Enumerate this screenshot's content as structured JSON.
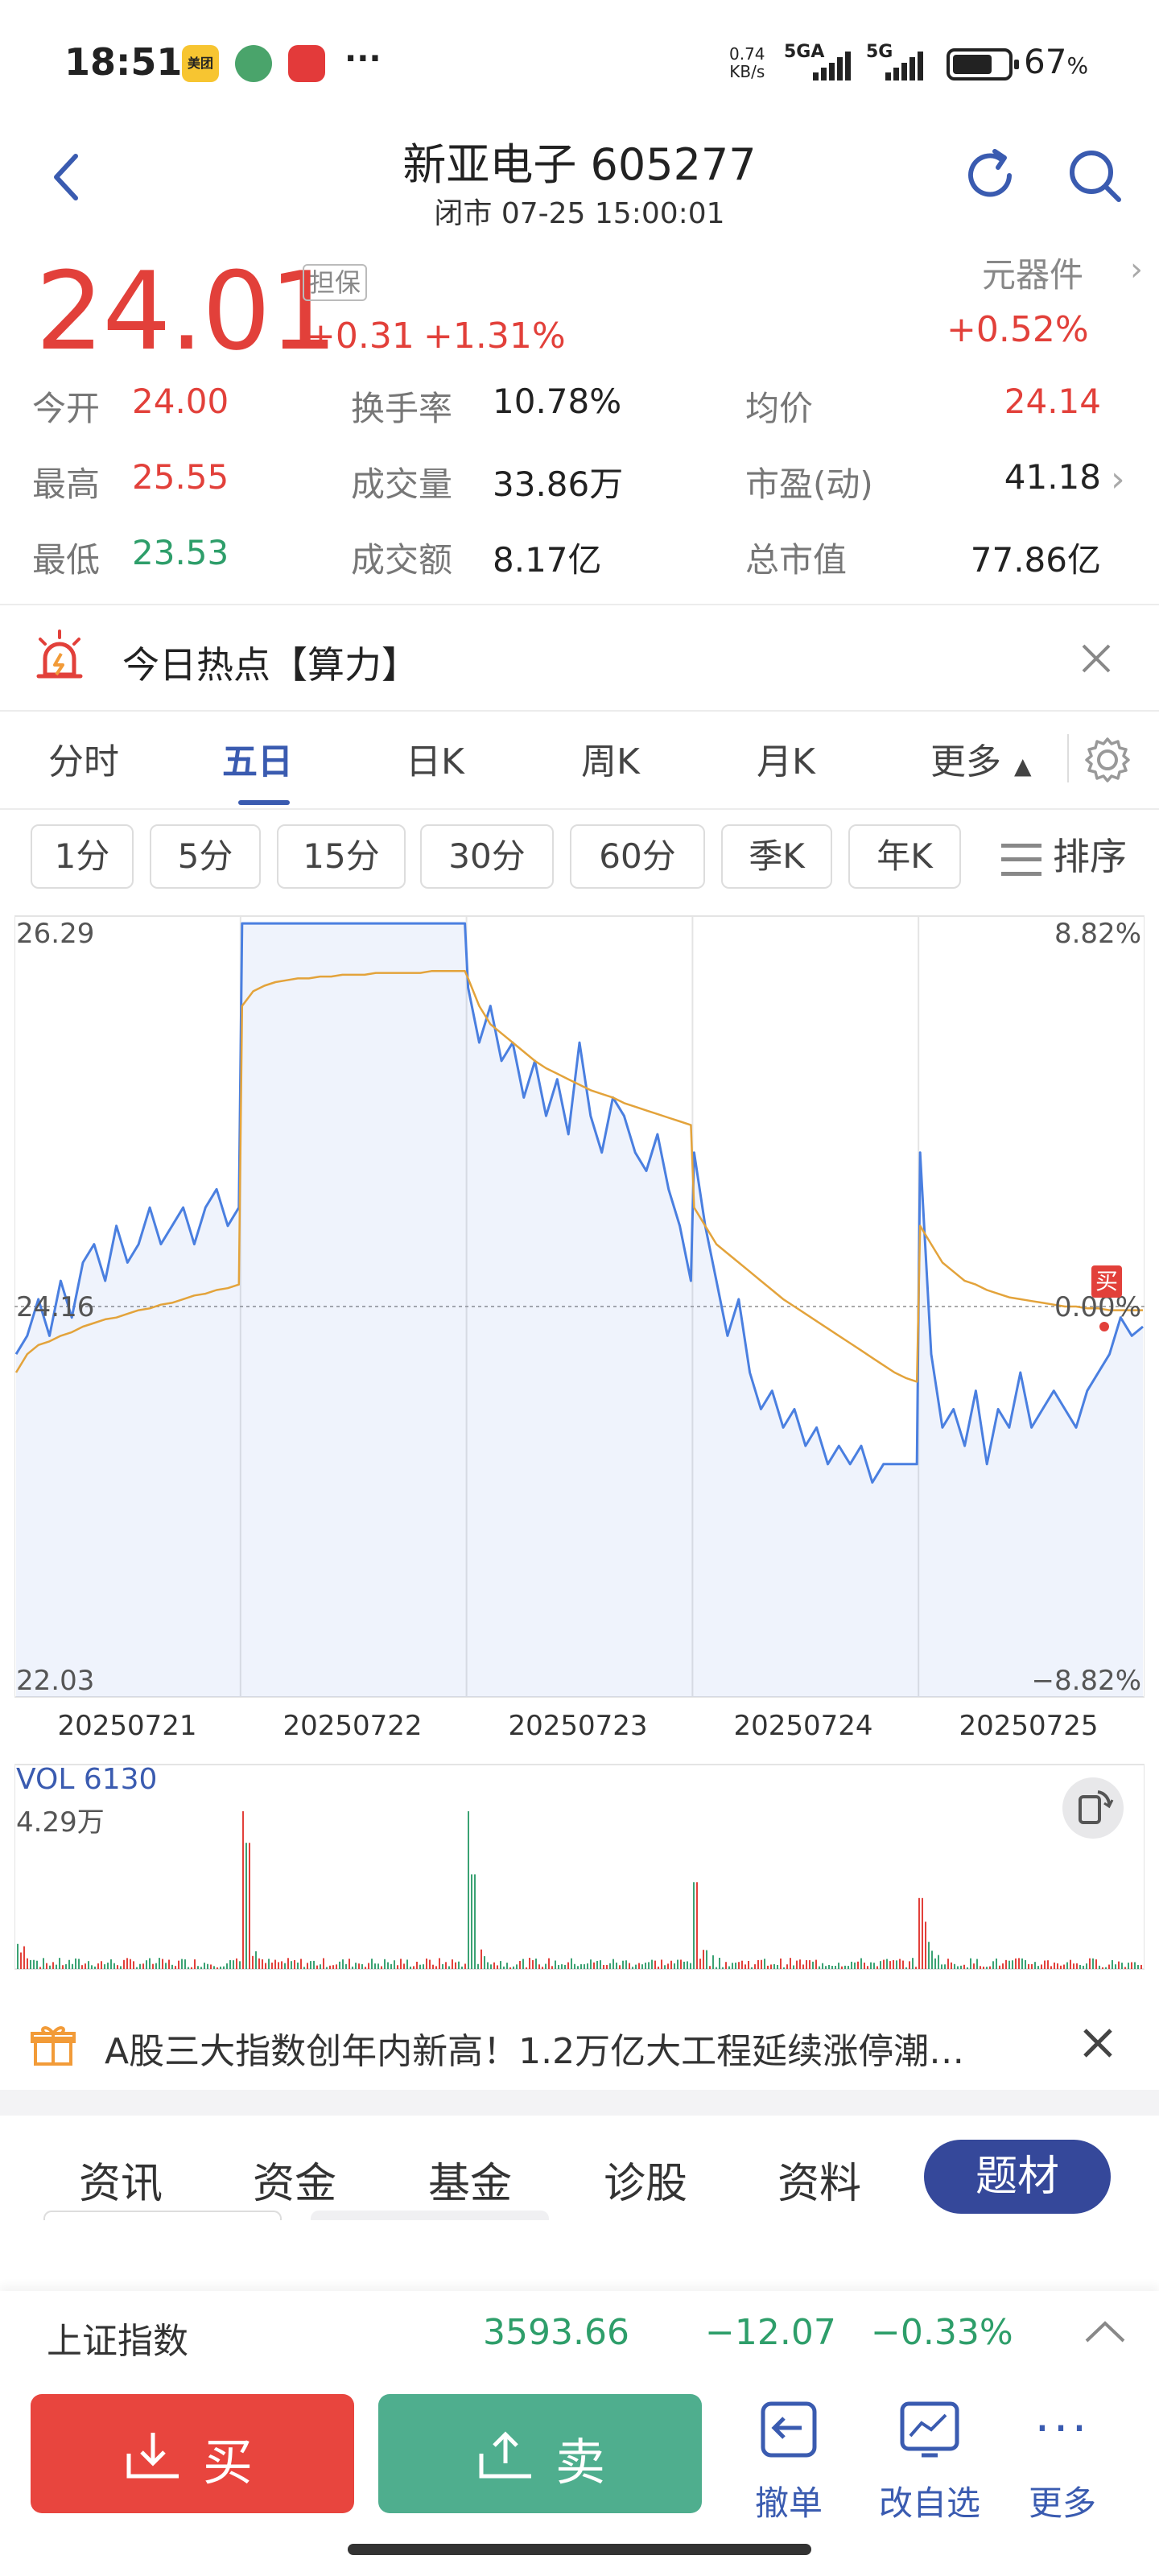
{
  "status_bar": {
    "time": "18:51",
    "app_icon_meituan": "美团",
    "net_speed_value": "0.74",
    "net_speed_unit": "KB/s",
    "net1": "5GA",
    "net2": "5G",
    "battery": "67",
    "battery_unit": "%"
  },
  "header": {
    "title": "新亚电子 605277",
    "subtitle": "闭市 07-25 15:00:01"
  },
  "quote": {
    "price": "24.01",
    "badge": "担保",
    "change": "+0.31",
    "change_pct": "+1.31%",
    "sector": "元器件",
    "sector_change": "+0.52%",
    "stats": [
      {
        "label": "今开",
        "value": "24.00",
        "color": "red"
      },
      {
        "label": "换手率",
        "value": "10.78%",
        "color": "dark"
      },
      {
        "label": "均价",
        "value": "24.14",
        "color": "red"
      },
      {
        "label": "最高",
        "value": "25.55",
        "color": "red"
      },
      {
        "label": "成交量",
        "value": "33.86万",
        "color": "dark"
      },
      {
        "label": "市盈(动)",
        "value": "41.18",
        "color": "dark"
      },
      {
        "label": "最低",
        "value": "23.53",
        "color": "green"
      },
      {
        "label": "成交额",
        "value": "8.17亿",
        "color": "dark"
      },
      {
        "label": "总市值",
        "value": "77.86亿",
        "color": "dark"
      }
    ]
  },
  "hot_topic": {
    "text": "今日热点【算力】"
  },
  "chart_tabs": [
    "分时",
    "五日",
    "日K",
    "周K",
    "月K",
    "更多"
  ],
  "active_tab": 1,
  "period_tabs": [
    "1分",
    "5分",
    "15分",
    "30分",
    "60分",
    "季K",
    "年K"
  ],
  "sort_label": "排序",
  "chart_data": {
    "type": "line",
    "y_top": "26.29",
    "y_mid": "24.16",
    "y_bottom": "22.03",
    "pct_top": "8.82%",
    "pct_mid": "0.00%",
    "pct_bottom": "−8.82%",
    "ylim": [
      22.03,
      26.29
    ],
    "days": [
      "20250721",
      "20250722",
      "20250723",
      "20250724",
      "20250725"
    ],
    "buy_marker": "买",
    "series": [
      {
        "name": "",
        "color": "#4a7fe0",
        "values": [
          [
            23.9,
            24.0,
            24.2,
            24.0,
            24.3,
            24.1,
            24.4,
            24.5,
            24.3,
            24.6,
            24.4,
            24.5,
            24.7,
            24.5,
            24.6,
            24.7,
            24.5,
            24.7,
            24.8,
            24.6,
            24.7
          ],
          [
            26.25,
            26.25,
            26.25,
            26.25,
            26.25,
            26.25,
            26.25,
            26.25,
            26.25,
            26.25,
            26.25,
            26.25,
            26.25,
            26.25,
            26.25,
            26.25,
            26.25,
            26.25,
            26.25,
            26.25,
            26.25
          ],
          [
            25.9,
            25.6,
            25.8,
            25.5,
            25.6,
            25.3,
            25.5,
            25.2,
            25.4,
            25.1,
            25.6,
            25.2,
            25.0,
            25.3,
            25.2,
            25.0,
            24.9,
            25.1,
            24.8,
            24.6,
            24.3
          ],
          [
            25.0,
            24.6,
            24.3,
            24.0,
            24.2,
            23.8,
            23.6,
            23.7,
            23.5,
            23.6,
            23.4,
            23.5,
            23.3,
            23.4,
            23.3,
            23.4,
            23.2,
            23.3,
            23.3,
            23.3,
            23.3
          ],
          [
            25.0,
            23.9,
            23.5,
            23.6,
            23.4,
            23.7,
            23.3,
            23.6,
            23.5,
            23.8,
            23.5,
            23.6,
            23.7,
            23.6,
            23.5,
            23.7,
            23.8,
            23.9,
            24.1,
            24.0,
            24.05
          ]
        ]
      },
      {
        "name": "",
        "color": "#e3a33b",
        "values": [
          [
            23.8,
            23.9,
            23.95,
            23.97,
            24.0,
            24.02,
            24.05,
            24.07,
            24.09,
            24.1,
            24.12,
            24.14,
            24.15,
            24.17,
            24.18,
            24.2,
            24.22,
            24.23,
            24.25,
            24.26,
            24.28
          ],
          [
            25.8,
            25.88,
            25.91,
            25.93,
            25.94,
            25.95,
            25.95,
            25.96,
            25.96,
            25.97,
            25.97,
            25.97,
            25.98,
            25.98,
            25.98,
            25.98,
            25.98,
            25.99,
            25.99,
            25.99,
            25.99
          ],
          [
            25.95,
            25.8,
            25.7,
            25.65,
            25.6,
            25.55,
            25.5,
            25.46,
            25.43,
            25.4,
            25.37,
            25.34,
            25.32,
            25.3,
            25.27,
            25.25,
            25.23,
            25.21,
            25.19,
            25.17,
            25.15
          ],
          [
            24.7,
            24.6,
            24.5,
            24.45,
            24.4,
            24.35,
            24.3,
            24.25,
            24.2,
            24.16,
            24.12,
            24.08,
            24.04,
            24.0,
            23.96,
            23.92,
            23.88,
            23.84,
            23.8,
            23.77,
            23.75
          ],
          [
            24.6,
            24.5,
            24.4,
            24.35,
            24.3,
            24.28,
            24.25,
            24.23,
            24.21,
            24.2,
            24.19,
            24.18,
            24.17,
            24.16,
            24.16,
            24.15,
            24.15,
            24.14,
            24.14,
            24.14,
            24.14
          ]
        ]
      }
    ]
  },
  "volume": {
    "label": "VOL 6130",
    "max_label": "4.29万",
    "spikes": [
      0.05,
      1.0,
      0.1,
      0.05,
      0.9,
      0.2,
      0.1,
      0.05,
      0.45,
      0.12,
      0.1,
      0.05,
      0.45,
      0.15,
      0.1,
      0.05,
      0.1
    ]
  },
  "news": {
    "text": "A股三大指数创年内新高！1.2万亿大工程延续涨停潮…"
  },
  "bottom_tabs": [
    "资讯",
    "资金",
    "基金",
    "诊股",
    "资料",
    "题材"
  ],
  "active_bottom_tab": 5,
  "index_ticker": {
    "name": "上证指数",
    "value": "3593.66",
    "change": "−12.07",
    "change_pct": "−0.33%"
  },
  "actions": {
    "buy": "买",
    "sell": "卖",
    "cancel": "撤单",
    "edit_watch": "改自选",
    "more": "更多"
  },
  "colors": {
    "up": "#e2403a",
    "down": "#2e9e6a",
    "accent": "#3a5bb0",
    "line": "#4a7fe0",
    "avg": "#e3a33b"
  }
}
